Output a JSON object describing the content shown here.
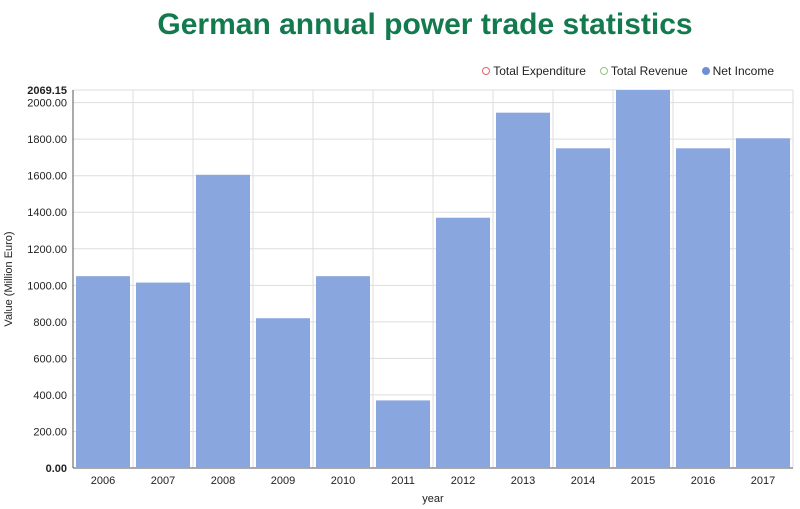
{
  "title": "German annual power trade statistics",
  "legend": [
    {
      "label": "Total Expenditure",
      "color": "#e06666",
      "style": "hollow"
    },
    {
      "label": "Total Revenue",
      "color": "#93c47d",
      "style": "hollow"
    },
    {
      "label": "Net Income",
      "color": "#6d8fd8",
      "style": "filled"
    }
  ],
  "chart_data": {
    "type": "bar",
    "title": "German annual power trade statistics",
    "xlabel": "year",
    "ylabel": "Value (Million Euro)",
    "categories": [
      "2006",
      "2007",
      "2008",
      "2009",
      "2010",
      "2011",
      "2012",
      "2013",
      "2014",
      "2015",
      "2016",
      "2017"
    ],
    "series": [
      {
        "name": "Net Income",
        "values": [
          1050,
          1015,
          1605,
          820,
          1050,
          370,
          1370,
          1945,
          1750,
          2069.15,
          1750,
          1805
        ]
      }
    ],
    "ylim": [
      0,
      2069.15
    ],
    "yticks": [
      "0.00",
      "200.00",
      "400.00",
      "600.00",
      "800.00",
      "1000.00",
      "1200.00",
      "1400.00",
      "1600.00",
      "1800.00",
      "2000.00"
    ],
    "ymax_label": "2069.15",
    "bar_color": "#8aa6df",
    "grid": true,
    "legend_position": "top-right"
  }
}
